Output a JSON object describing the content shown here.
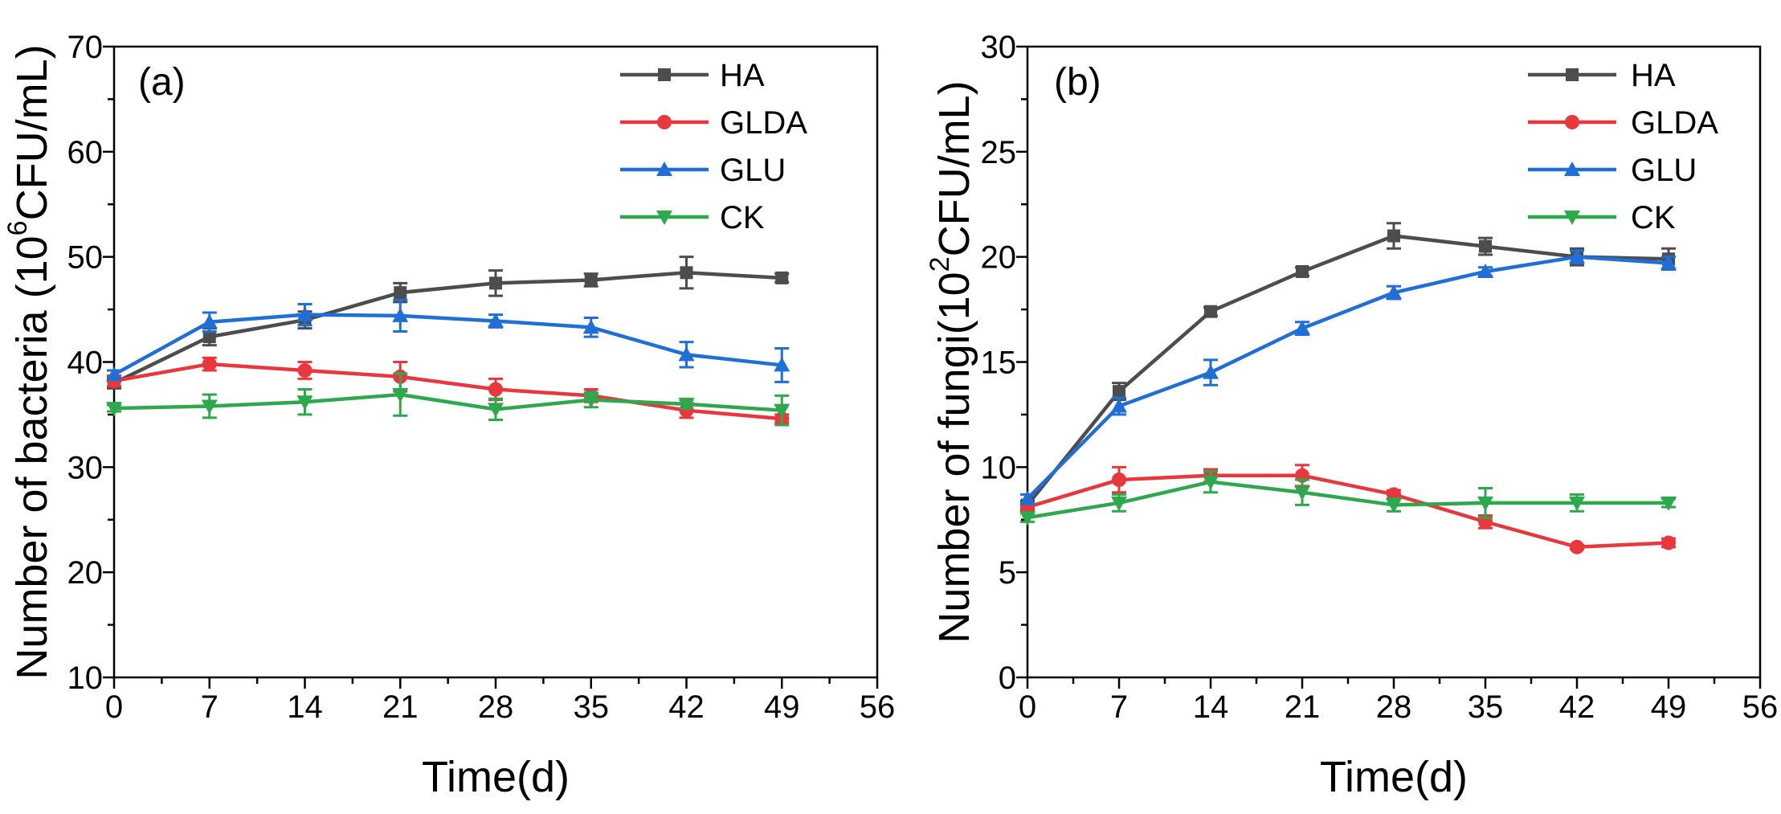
{
  "chart_data": [
    {
      "type": "line",
      "panel_label": "(a)",
      "xlabel": "Time(d)",
      "ylabel": "Number of bacteria (10^6CFU/mL)",
      "ylabel_parts": [
        "Number of bacteria (10",
        "6",
        "CFU/mL)"
      ],
      "xlim": [
        0,
        56
      ],
      "ylim": [
        10,
        70
      ],
      "xticks": [
        0,
        7,
        14,
        21,
        28,
        35,
        42,
        49,
        56
      ],
      "yticks": [
        10,
        20,
        30,
        40,
        50,
        60,
        70
      ],
      "legend_position": "top-right",
      "x": [
        0,
        7,
        14,
        21,
        28,
        35,
        42,
        49
      ],
      "series": [
        {
          "name": "HA",
          "color": "#4d4d4d",
          "marker": "square",
          "values": [
            38.0,
            42.4,
            44.0,
            46.6,
            47.5,
            47.8,
            48.5,
            48.0
          ],
          "errors": [
            0.5,
            0.8,
            0.8,
            0.9,
            1.2,
            0.6,
            1.5,
            0.4
          ]
        },
        {
          "name": "GLDA",
          "color": "#e8383d",
          "marker": "circle",
          "values": [
            38.2,
            39.8,
            39.2,
            38.6,
            37.4,
            36.8,
            35.4,
            34.6
          ],
          "errors": [
            0.5,
            0.6,
            0.8,
            1.4,
            1.0,
            0.6,
            0.7,
            0.4
          ]
        },
        {
          "name": "GLU",
          "color": "#1f6fd6",
          "marker": "triangle-up",
          "values": [
            38.8,
            43.8,
            44.5,
            44.4,
            43.9,
            43.3,
            40.7,
            39.7
          ],
          "errors": [
            0.4,
            0.9,
            1.0,
            1.5,
            0.6,
            0.9,
            1.2,
            1.6
          ]
        },
        {
          "name": "CK",
          "color": "#2ea84c",
          "marker": "triangle-down",
          "values": [
            35.6,
            35.8,
            36.2,
            36.9,
            35.5,
            36.4,
            36.0,
            35.4
          ],
          "errors": [
            0.3,
            1.1,
            1.2,
            2.0,
            1.0,
            0.7,
            0.4,
            1.4
          ]
        }
      ]
    },
    {
      "type": "line",
      "panel_label": "(b)",
      "xlabel": "Time(d)",
      "ylabel": "Number of fungi(10^2CFU/mL)",
      "ylabel_parts": [
        "Number of fungi(10",
        "2",
        "CFU/mL)"
      ],
      "xlim": [
        0,
        56
      ],
      "ylim": [
        0,
        30
      ],
      "xticks": [
        0,
        7,
        14,
        21,
        28,
        35,
        42,
        49,
        56
      ],
      "yticks": [
        0,
        5,
        10,
        15,
        20,
        25,
        30
      ],
      "legend_position": "top-right",
      "x": [
        0,
        7,
        14,
        21,
        28,
        35,
        42,
        49
      ],
      "series": [
        {
          "name": "HA",
          "color": "#4d4d4d",
          "marker": "square",
          "values": [
            8.2,
            13.6,
            17.4,
            19.3,
            21.0,
            20.5,
            20.0,
            19.9
          ],
          "errors": [
            0.2,
            0.4,
            0.2,
            0.2,
            0.6,
            0.4,
            0.4,
            0.5
          ]
        },
        {
          "name": "GLDA",
          "color": "#e8383d",
          "marker": "circle",
          "values": [
            8.1,
            9.4,
            9.6,
            9.6,
            8.7,
            7.4,
            6.2,
            6.4
          ],
          "errors": [
            0.2,
            0.6,
            0.3,
            0.5,
            0.2,
            0.3,
            0.1,
            0.2
          ]
        },
        {
          "name": "GLU",
          "color": "#1f6fd6",
          "marker": "triangle-up",
          "values": [
            8.5,
            12.9,
            14.5,
            16.6,
            18.3,
            19.3,
            20.0,
            19.7
          ],
          "errors": [
            0.2,
            0.4,
            0.6,
            0.3,
            0.3,
            0.2,
            0.3,
            0.3
          ]
        },
        {
          "name": "CK",
          "color": "#2ea84c",
          "marker": "triangle-down",
          "values": [
            7.6,
            8.3,
            9.3,
            8.8,
            8.2,
            8.3,
            8.3,
            8.3
          ],
          "errors": [
            0.2,
            0.4,
            0.5,
            0.6,
            0.3,
            0.7,
            0.4,
            0.2
          ]
        }
      ]
    }
  ]
}
